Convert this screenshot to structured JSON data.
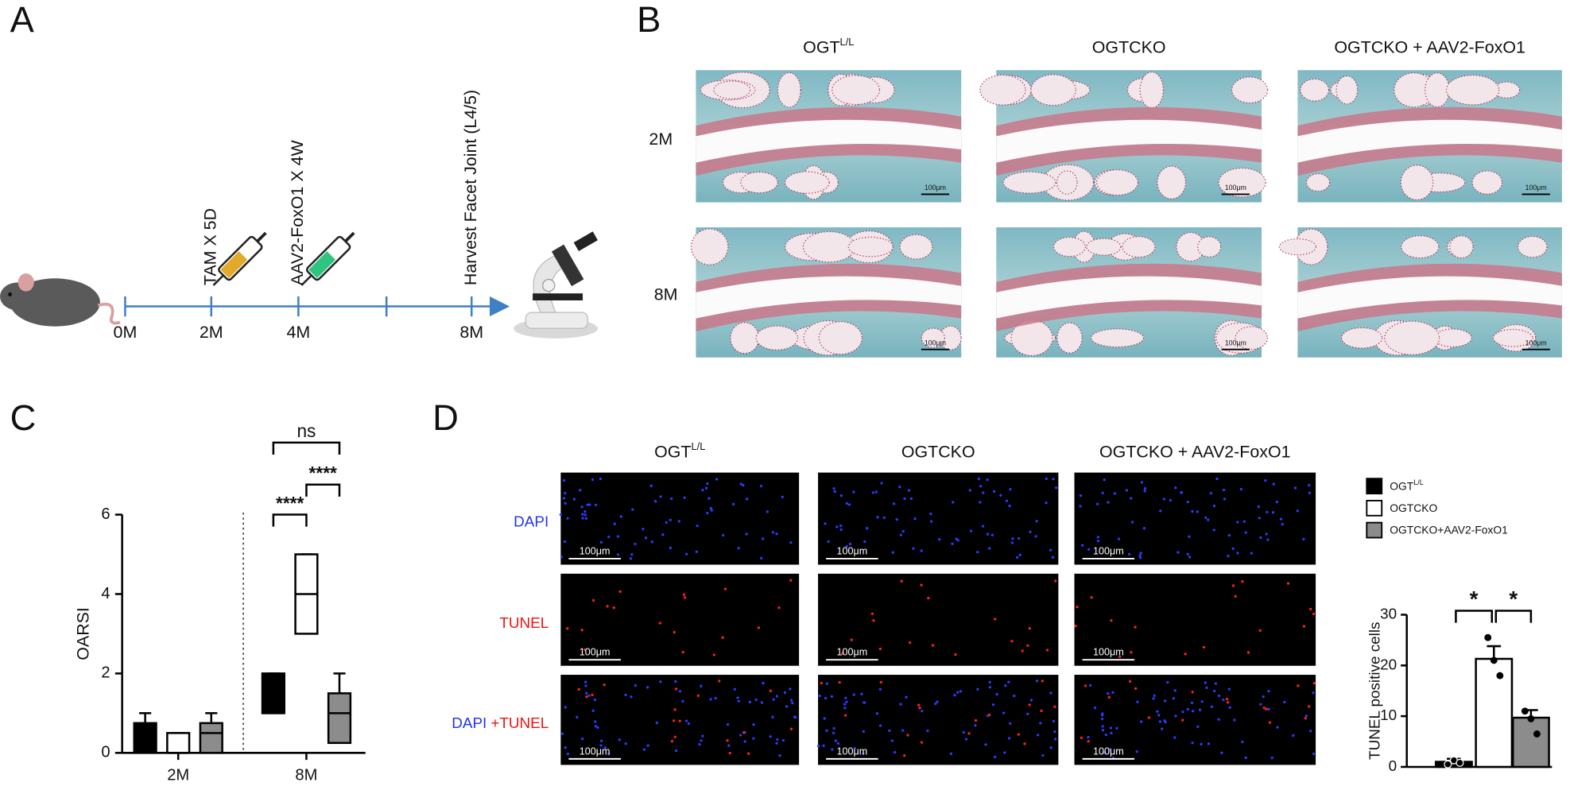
{
  "panel_labels": [
    "A",
    "B",
    "C",
    "D"
  ],
  "timeline": {
    "ticks": [
      "0M",
      "2M",
      "4M",
      "8M"
    ],
    "events": [
      "TAM X 5D",
      "AAV2-FoxO1 X 4W",
      "Harvest Facet Joint (L4/5)"
    ]
  },
  "histology": {
    "columns": [
      {
        "text": "OGT",
        "sup": "L/L"
      },
      {
        "text": "OGTCKO"
      },
      {
        "text": "OGTCKO + AAV2-FoxO1"
      }
    ],
    "rows": [
      "2M",
      "8M"
    ],
    "scale_bar": "100μm"
  },
  "fluorescence": {
    "columns": [
      {
        "text": "OGT",
        "sup": "L/L"
      },
      {
        "text": "OGTCKO"
      },
      {
        "text": "OGTCKO + AAV2-FoxO1"
      }
    ],
    "rows": [
      [
        "DAPI"
      ],
      [
        "TUNEL"
      ],
      [
        "DAPI",
        "+TUNEL"
      ]
    ],
    "scale_bar": "100μm"
  },
  "chart_data": [
    {
      "type": "box",
      "ylabel": "OARSI",
      "categories": [
        "2M",
        "8M"
      ],
      "ylim": [
        0,
        6
      ],
      "yticks": [
        0,
        2,
        4,
        6
      ],
      "series": [
        {
          "color": "#000000",
          "stats": [
            {
              "min": 0,
              "q1": 0,
              "median": 0.5,
              "q3": 0.75,
              "max": 1
            },
            {
              "min": 1,
              "q1": 1,
              "median": 1,
              "q3": 2,
              "max": 2
            }
          ]
        },
        {
          "color": "#ffffff",
          "stats": [
            {
              "min": 0,
              "q1": 0,
              "median": 0,
              "q3": 0.5,
              "max": 0.5
            },
            {
              "min": 3,
              "q1": 3,
              "median": 4,
              "q3": 5,
              "max": 5
            }
          ]
        },
        {
          "color": "#8c8c8c",
          "stats": [
            {
              "min": 0,
              "q1": 0,
              "median": 0.5,
              "q3": 0.75,
              "max": 1
            },
            {
              "min": 0.25,
              "q1": 0.25,
              "median": 1,
              "q3": 1.5,
              "max": 2
            }
          ]
        }
      ],
      "annotations": [
        "****",
        "****",
        "ns"
      ]
    },
    {
      "type": "bar",
      "ylabel": "TUNEL positive cells",
      "ylim": [
        0,
        30
      ],
      "yticks": [
        0,
        10,
        20,
        30
      ],
      "series": [
        {
          "name": "OGT",
          "name_sup": "L/L",
          "color": "#000000",
          "values": [
            1
          ],
          "errors": [
            0.6
          ],
          "points": [
            0.5,
            1.3,
            0.8
          ]
        },
        {
          "name": "OGTCKO",
          "color": "#ffffff",
          "values": [
            21.3
          ],
          "errors": [
            2.5
          ],
          "points": [
            25.5,
            21,
            18
          ]
        },
        {
          "name": "OGTCKO+AAV2-FoxO1",
          "color": "#8c8c8c",
          "values": [
            9.7
          ],
          "errors": [
            1.5
          ],
          "points": [
            11,
            9.5,
            6.5
          ]
        }
      ],
      "annotations": [
        "*",
        "*"
      ]
    }
  ]
}
